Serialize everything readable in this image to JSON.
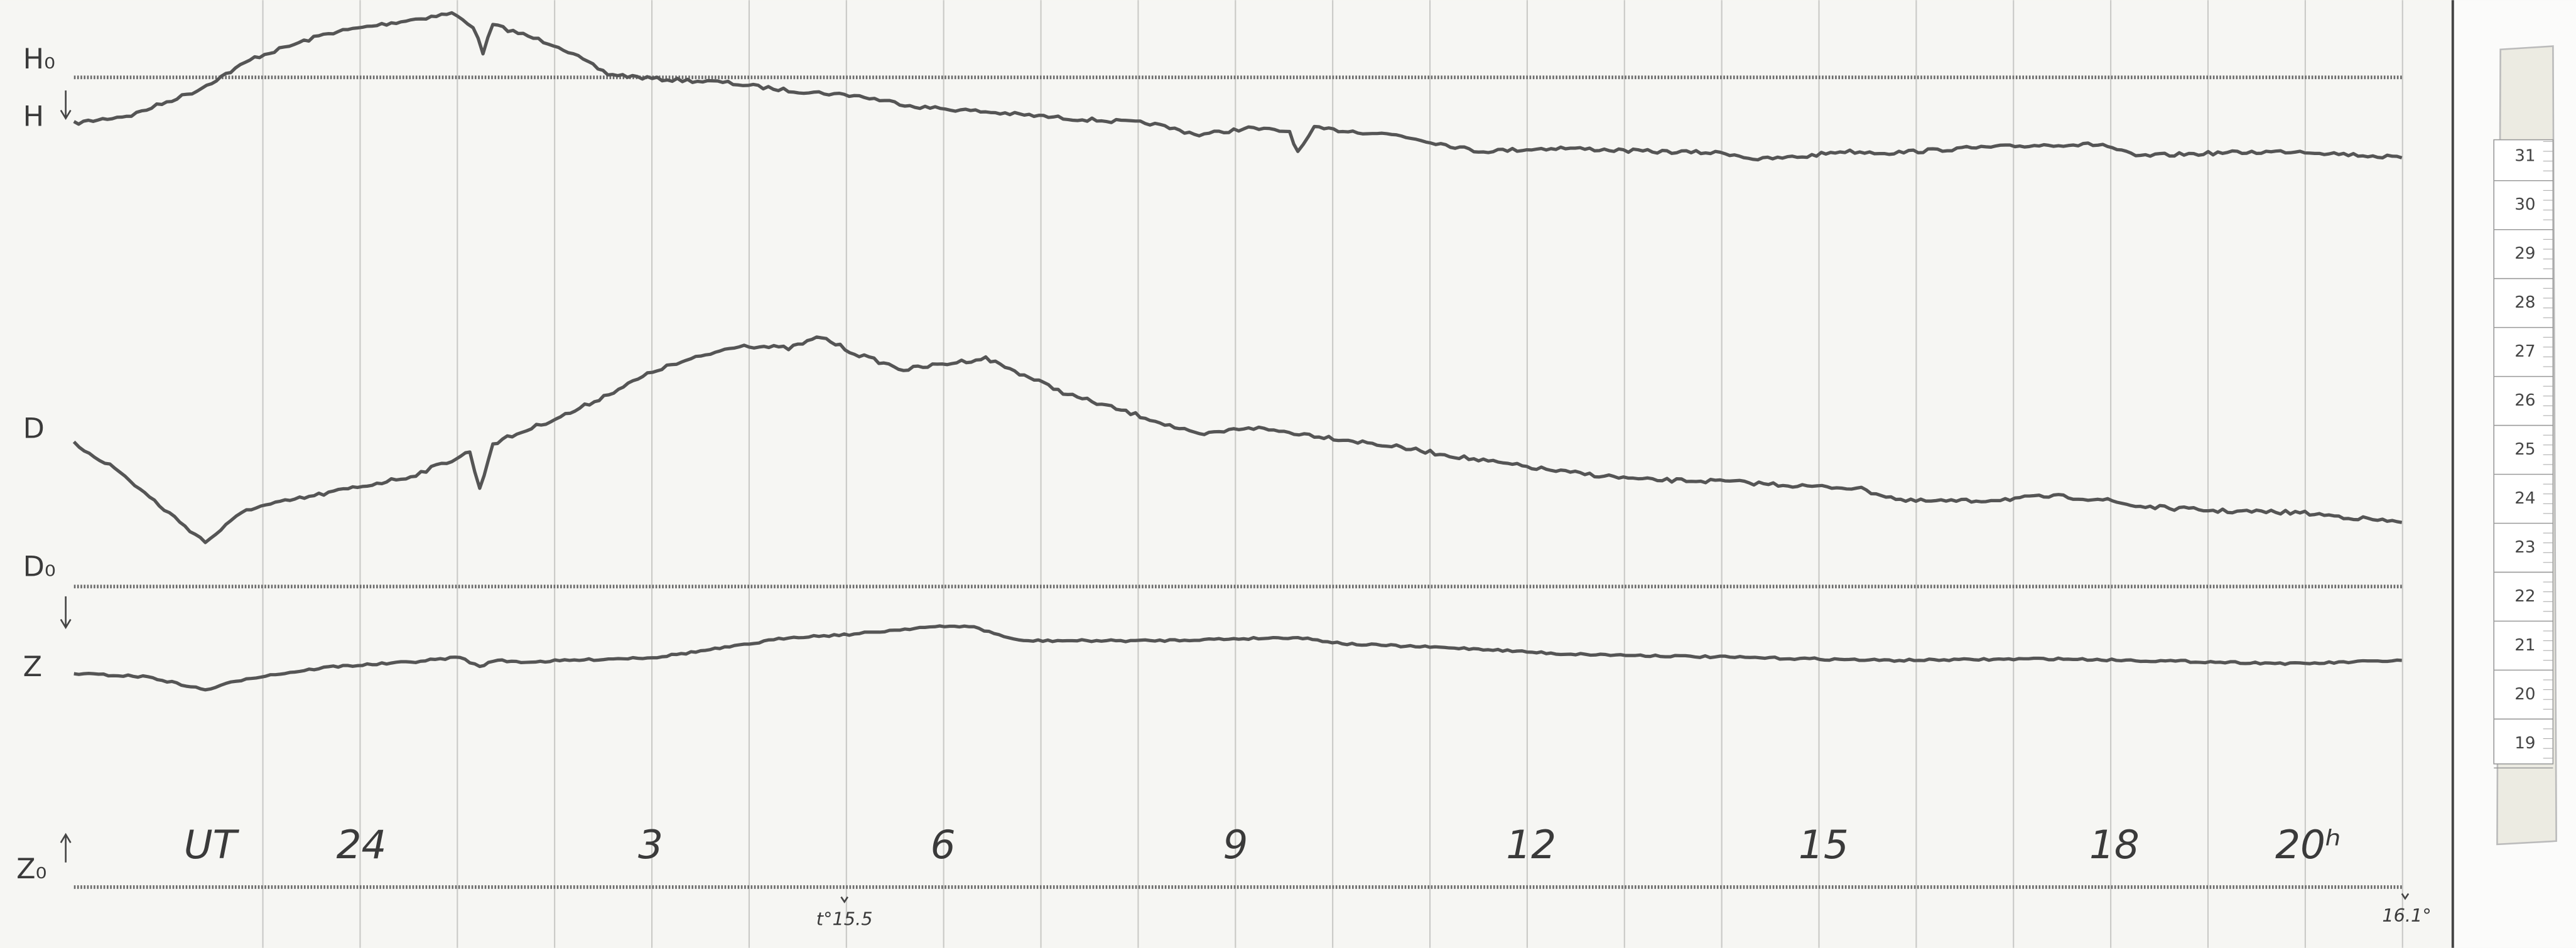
{
  "labels": {
    "h_base": "H₀",
    "h": "H",
    "d": "D",
    "d_base": "D₀",
    "z": "Z",
    "z_base": "Z₀"
  },
  "time_axis": {
    "label": "UT",
    "hours": [
      "24",
      "3",
      "6",
      "9",
      "12",
      "15",
      "18",
      "20ʰ"
    ]
  },
  "temperatures": {
    "start": "t°15.5",
    "end": "16.1°"
  },
  "scale": [
    "31",
    "30",
    "29",
    "28",
    "27",
    "26",
    "25",
    "24",
    "23",
    "22",
    "21",
    "20",
    "19"
  ]
}
